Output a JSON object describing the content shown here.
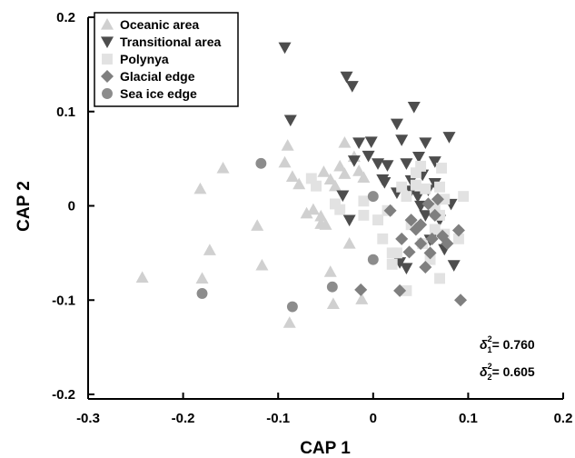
{
  "chart_data": {
    "type": "scatter",
    "xlabel": "CAP 1",
    "ylabel": "CAP 2",
    "xlim": [
      -0.3,
      0.2
    ],
    "ylim": [
      -0.2,
      0.2
    ],
    "xticks": [
      "-0.3",
      "-0.2",
      "-0.1",
      "0",
      "0.1",
      "0.2"
    ],
    "yticks": [
      "0.2",
      "0.1",
      "0",
      "-0.1",
      "-0.2"
    ],
    "legend_position": "top-left",
    "series": [
      {
        "name": "Oceanic area",
        "marker": "triangle-up",
        "color": "#d0d0d0",
        "points": [
          [
            -0.243,
            -0.076
          ],
          [
            -0.18,
            -0.077
          ],
          [
            -0.182,
            0.018
          ],
          [
            -0.158,
            0.04
          ],
          [
            -0.172,
            -0.047
          ],
          [
            -0.122,
            -0.021
          ],
          [
            -0.117,
            -0.063
          ],
          [
            -0.088,
            -0.124
          ],
          [
            -0.09,
            0.064
          ],
          [
            -0.093,
            0.046
          ],
          [
            -0.085,
            0.031
          ],
          [
            -0.078,
            0.023
          ],
          [
            -0.07,
            -0.008
          ],
          [
            -0.063,
            -0.004
          ],
          [
            -0.055,
            -0.019
          ],
          [
            -0.055,
            -0.011
          ],
          [
            -0.052,
            0.036
          ],
          [
            -0.045,
            0.028
          ],
          [
            -0.04,
            0.021
          ],
          [
            -0.035,
            0.042
          ],
          [
            -0.03,
            0.067
          ],
          [
            -0.03,
            0.034
          ],
          [
            -0.045,
            -0.07
          ],
          [
            -0.012,
            -0.099
          ],
          [
            -0.042,
            -0.104
          ],
          [
            -0.025,
            -0.04
          ],
          [
            -0.02,
            0.052
          ],
          [
            -0.015,
            0.037
          ],
          [
            -0.01,
            0.03
          ],
          [
            -0.05,
            -0.02
          ]
        ]
      },
      {
        "name": "Transitional area",
        "marker": "triangle-down",
        "color": "#4d4d4d",
        "points": [
          [
            -0.093,
            0.168
          ],
          [
            -0.087,
            0.091
          ],
          [
            -0.028,
            0.137
          ],
          [
            -0.022,
            0.127
          ],
          [
            -0.015,
            0.067
          ],
          [
            -0.02,
            0.048
          ],
          [
            -0.032,
            0.011
          ],
          [
            -0.025,
            -0.015
          ],
          [
            -0.002,
            0.068
          ],
          [
            -0.005,
            0.053
          ],
          [
            0.005,
            0.045
          ],
          [
            0.01,
            0.028
          ],
          [
            0.012,
            0.025
          ],
          [
            0.015,
            0.043
          ],
          [
            0.025,
            0.087
          ],
          [
            0.03,
            0.07
          ],
          [
            0.035,
            0.045
          ],
          [
            0.04,
            0.027
          ],
          [
            0.043,
            0.105
          ],
          [
            0.048,
            0.052
          ],
          [
            0.052,
            0.033
          ],
          [
            0.055,
            0.067
          ],
          [
            0.058,
            0.017
          ],
          [
            0.04,
            0.016
          ],
          [
            0.047,
            0.01
          ],
          [
            0.05,
            0.0
          ],
          [
            0.055,
            -0.01
          ],
          [
            0.06,
            -0.036
          ],
          [
            0.065,
            0.024
          ],
          [
            0.07,
            -0.015
          ],
          [
            0.08,
            0.073
          ],
          [
            0.082,
            0.002
          ],
          [
            0.085,
            -0.063
          ],
          [
            0.075,
            -0.046
          ],
          [
            0.035,
            -0.066
          ],
          [
            0.028,
            -0.06
          ],
          [
            0.065,
            0.047
          ],
          [
            0.025,
            0.014
          ]
        ]
      },
      {
        "name": "Polynya",
        "marker": "square",
        "color": "#e2e2e2",
        "points": [
          [
            -0.065,
            0.029
          ],
          [
            -0.06,
            0.021
          ],
          [
            -0.04,
            0.002
          ],
          [
            -0.035,
            -0.004
          ],
          [
            -0.01,
            -0.01
          ],
          [
            -0.01,
            0.005
          ],
          [
            0.005,
            -0.015
          ],
          [
            0.01,
            -0.035
          ],
          [
            0.015,
            -0.005
          ],
          [
            0.02,
            -0.062
          ],
          [
            0.025,
            -0.05
          ],
          [
            0.03,
            0.02
          ],
          [
            0.035,
            0.01
          ],
          [
            0.04,
            -0.02
          ],
          [
            0.045,
            0.035
          ],
          [
            0.05,
            0.042
          ],
          [
            0.052,
            -0.04
          ],
          [
            0.055,
            0.018
          ],
          [
            0.06,
            -0.057
          ],
          [
            0.065,
            -0.002
          ],
          [
            0.065,
            -0.025
          ],
          [
            0.07,
            -0.01
          ],
          [
            0.07,
            0.02
          ],
          [
            0.072,
            0.04
          ],
          [
            0.075,
            -0.03
          ],
          [
            0.075,
            0.007
          ],
          [
            0.09,
            -0.035
          ],
          [
            0.095,
            0.01
          ],
          [
            0.035,
            -0.09
          ],
          [
            0.07,
            -0.077
          ],
          [
            0.02,
            -0.05
          ],
          [
            0.045,
            0.022
          ]
        ]
      },
      {
        "name": "Glacial edge",
        "marker": "diamond",
        "color": "#7f7f7f",
        "points": [
          [
            -0.013,
            -0.089
          ],
          [
            0.028,
            -0.09
          ],
          [
            0.018,
            -0.005
          ],
          [
            0.03,
            -0.035
          ],
          [
            0.038,
            -0.049
          ],
          [
            0.04,
            -0.015
          ],
          [
            0.045,
            -0.025
          ],
          [
            0.05,
            -0.02
          ],
          [
            0.055,
            -0.065
          ],
          [
            0.06,
            -0.05
          ],
          [
            0.062,
            -0.035
          ],
          [
            0.065,
            -0.01
          ],
          [
            0.068,
            0.007
          ],
          [
            0.073,
            -0.032
          ],
          [
            0.078,
            -0.04
          ],
          [
            0.09,
            -0.026
          ],
          [
            0.092,
            -0.1
          ],
          [
            0.058,
            0.002
          ],
          [
            0.05,
            -0.04
          ]
        ]
      },
      {
        "name": "Sea ice edge",
        "marker": "circle",
        "color": "#8c8c8c",
        "points": [
          [
            -0.18,
            -0.093
          ],
          [
            -0.118,
            0.045
          ],
          [
            -0.085,
            -0.107
          ],
          [
            -0.043,
            -0.086
          ],
          [
            0.0,
            -0.057
          ],
          [
            0.0,
            0.01
          ]
        ]
      }
    ],
    "annotations": [
      {
        "symbol": "δ",
        "sub": "1",
        "sup": "2",
        "value": "= 0.760"
      },
      {
        "symbol": "δ",
        "sub": "2",
        "sup": "2",
        "value": "= 0.605"
      }
    ]
  }
}
